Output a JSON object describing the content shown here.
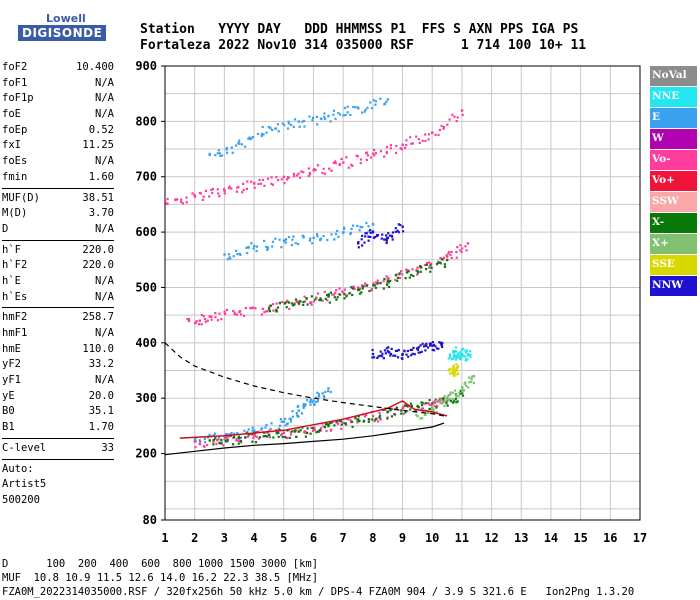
{
  "logo": {
    "line1": "Lowell",
    "line2": "DIGISONDE"
  },
  "header": {
    "row1": "Station   YYYY DAY   DDD HHMMSS P1  FFS S AXN PPS IGA PS",
    "row2": "Fortaleza 2022 Nov10 314 035000 RSF      1 714 100 10+ 11"
  },
  "params_groups": [
    [
      {
        "k": "foF2",
        "v": "10.400"
      },
      {
        "k": "foF1",
        "v": "N/A"
      },
      {
        "k": "foF1p",
        "v": "N/A"
      },
      {
        "k": "foE",
        "v": "N/A"
      },
      {
        "k": "foEp",
        "v": "0.52"
      },
      {
        "k": "fxI",
        "v": "11.25"
      },
      {
        "k": "foEs",
        "v": "N/A"
      },
      {
        "k": "fmin",
        "v": "1.60"
      }
    ],
    [
      {
        "k": "MUF(D)",
        "v": "38.51"
      },
      {
        "k": "M(D)",
        "v": "3.70"
      },
      {
        "k": "D",
        "v": "N/A"
      }
    ],
    [
      {
        "k": "h`F",
        "v": "220.0"
      },
      {
        "k": "h`F2",
        "v": "220.0"
      },
      {
        "k": "h`E",
        "v": "N/A"
      },
      {
        "k": "h`Es",
        "v": "N/A"
      }
    ],
    [
      {
        "k": "hmF2",
        "v": "258.7"
      },
      {
        "k": "hmF1",
        "v": "N/A"
      },
      {
        "k": "hmE",
        "v": "110.0"
      },
      {
        "k": "yF2",
        "v": "33.2"
      },
      {
        "k": "yF1",
        "v": "N/A"
      },
      {
        "k": "yE",
        "v": "20.0"
      },
      {
        "k": "B0",
        "v": "35.1"
      },
      {
        "k": "B1",
        "v": "1.70"
      }
    ],
    [
      {
        "k": "C-level",
        "v": "33"
      }
    ]
  ],
  "auto": {
    "line1": "Auto:",
    "line2": "Artist5",
    "line3": "500200"
  },
  "legend": [
    {
      "label": "NoVal",
      "color": "#8c8c8c"
    },
    {
      "label": "NNE",
      "color": "#22e6f0"
    },
    {
      "label": "E",
      "color": "#3aa0f0"
    },
    {
      "label": "W",
      "color": "#b000b0"
    },
    {
      "label": "Vo-",
      "color": "#ff3c9c"
    },
    {
      "label": "Vo+",
      "color": "#f01438"
    },
    {
      "label": "SSW",
      "color": "#f8a8a8"
    },
    {
      "label": "X-",
      "color": "#087808"
    },
    {
      "label": "X+",
      "color": "#80c070"
    },
    {
      "label": "SSE",
      "color": "#d8d800"
    },
    {
      "label": "NNW",
      "color": "#2010d0"
    }
  ],
  "footer": {
    "d_row": "D      100  200  400  600  800 1000 1500 3000 [km]",
    "muf_row": "MUF  10.8 10.9 11.5 12.6 14.0 16.2 22.3 38.5 [MHz]",
    "file_row": "FZA0M_2022314035000.RSF / 320fx256h 50 kHz 5.0 km / DPS-4 FZA0M 904 / 3.9 S 321.6 E   Ion2Png 1.3.20"
  },
  "chart_data": {
    "type": "scatter",
    "xlim": [
      1,
      17
    ],
    "ylim": [
      80,
      900
    ],
    "x_ticks": [
      "1",
      "2",
      "3",
      "4",
      "5",
      "6",
      "7",
      "8",
      "9",
      "10",
      "11",
      "12",
      "13",
      "14",
      "15",
      "16",
      "17"
    ],
    "y_ticks": [
      {
        "v": 80,
        "label": "80"
      },
      {
        "v": 200,
        "label": "200"
      },
      {
        "v": 300,
        "label": "300"
      },
      {
        "v": 400,
        "label": "400"
      },
      {
        "v": 500,
        "label": "500"
      },
      {
        "v": 600,
        "label": "600"
      },
      {
        "v": 700,
        "label": "700"
      },
      {
        "v": 800,
        "label": "800"
      },
      {
        "v": 900,
        "label": "900"
      }
    ],
    "traces": [
      {
        "name": "E",
        "color": "#3aa0f0",
        "points": [
          [
            2.0,
            225
          ],
          [
            3.0,
            232
          ],
          [
            4.0,
            242
          ],
          [
            5.0,
            258
          ],
          [
            5.5,
            278
          ],
          [
            6.0,
            296
          ],
          [
            6.5,
            318
          ]
        ]
      },
      {
        "name": "Vo-",
        "color": "#ff3c9c",
        "points": [
          [
            2.0,
            222
          ],
          [
            3.0,
            226
          ],
          [
            4.0,
            232
          ],
          [
            5.0,
            238
          ],
          [
            6.0,
            246
          ],
          [
            7.0,
            256
          ],
          [
            8.0,
            268
          ],
          [
            9.0,
            282
          ],
          [
            10.0,
            290
          ],
          [
            10.5,
            300
          ]
        ]
      },
      {
        "name": "X-",
        "color": "#087808",
        "points": [
          [
            2.5,
            224
          ],
          [
            3.5,
            228
          ],
          [
            4.5,
            234
          ],
          [
            5.5,
            240
          ],
          [
            6.5,
            250
          ],
          [
            7.5,
            262
          ],
          [
            8.5,
            276
          ],
          [
            9.5,
            286
          ],
          [
            10.5,
            296
          ],
          [
            11.0,
            310
          ]
        ]
      },
      {
        "name": "X+",
        "color": "#80c070",
        "points": [
          [
            9.5,
            268
          ],
          [
            10.0,
            282
          ],
          [
            10.5,
            300
          ],
          [
            11.0,
            320
          ],
          [
            11.4,
            340
          ]
        ]
      },
      {
        "name": "NNE",
        "color": "#22e6f0",
        "points": [
          [
            10.6,
            375
          ],
          [
            10.8,
            385
          ],
          [
            11.0,
            380
          ],
          [
            11.2,
            378
          ]
        ]
      },
      {
        "name": "NNW",
        "color": "#2010d0",
        "points": [
          [
            8.0,
            380
          ],
          [
            8.5,
            385
          ],
          [
            9.0,
            380
          ],
          [
            9.5,
            390
          ],
          [
            10.0,
            395
          ],
          [
            10.3,
            400
          ]
        ]
      },
      {
        "name": "SSE",
        "color": "#d8d800",
        "points": [
          [
            10.6,
            345
          ],
          [
            10.7,
            355
          ],
          [
            10.8,
            350
          ]
        ]
      },
      {
        "name": "Vo-",
        "color": "#ff3c9c",
        "points": [
          [
            1.8,
            440
          ],
          [
            2.5,
            448
          ],
          [
            3.5,
            456
          ],
          [
            4.5,
            464
          ],
          [
            5.5,
            474
          ],
          [
            6.5,
            486
          ],
          [
            7.5,
            500
          ],
          [
            8.5,
            516
          ],
          [
            9.5,
            536
          ],
          [
            10.5,
            556
          ],
          [
            11.2,
            580
          ]
        ]
      },
      {
        "name": "X-",
        "color": "#087808",
        "points": [
          [
            4.5,
            462
          ],
          [
            5.5,
            472
          ],
          [
            6.5,
            484
          ],
          [
            7.5,
            496
          ],
          [
            8.5,
            512
          ],
          [
            9.5,
            530
          ],
          [
            10.5,
            550
          ]
        ]
      },
      {
        "name": "E",
        "color": "#3aa0f0",
        "points": [
          [
            3.0,
            560
          ],
          [
            4.0,
            575
          ],
          [
            5.0,
            585
          ],
          [
            6.0,
            590
          ],
          [
            7.0,
            600
          ],
          [
            8.0,
            615
          ]
        ]
      },
      {
        "name": "NNW",
        "color": "#2010d0",
        "points": [
          [
            7.5,
            580
          ],
          [
            8.0,
            600
          ],
          [
            8.5,
            590
          ],
          [
            9.0,
            610
          ]
        ]
      },
      {
        "name": "Vo-",
        "color": "#ff3c9c",
        "points": [
          [
            1.0,
            655
          ],
          [
            2.0,
            665
          ],
          [
            3.0,
            675
          ],
          [
            4.0,
            688
          ],
          [
            5.0,
            700
          ],
          [
            6.0,
            712
          ],
          [
            7.0,
            726
          ],
          [
            8.0,
            742
          ],
          [
            9.0,
            758
          ],
          [
            10.0,
            780
          ],
          [
            11.0,
            820
          ]
        ]
      },
      {
        "name": "E",
        "color": "#3aa0f0",
        "points": [
          [
            2.5,
            740
          ],
          [
            3.5,
            760
          ],
          [
            4.5,
            790
          ],
          [
            5.5,
            800
          ],
          [
            6.5,
            810
          ],
          [
            7.5,
            825
          ],
          [
            8.5,
            840
          ]
        ]
      }
    ],
    "virtual_height_trace": [
      [
        1.0,
        198
      ],
      [
        2.0,
        204
      ],
      [
        3.0,
        210
      ],
      [
        4.0,
        215
      ],
      [
        5.0,
        218
      ],
      [
        6.0,
        222
      ],
      [
        7.0,
        226
      ],
      [
        8.0,
        232
      ],
      [
        9.0,
        240
      ],
      [
        10.0,
        248
      ],
      [
        10.4,
        255
      ]
    ],
    "red_trace": [
      [
        1.5,
        228
      ],
      [
        3.0,
        232
      ],
      [
        5.0,
        242
      ],
      [
        7.0,
        262
      ],
      [
        8.5,
        282
      ],
      [
        9.0,
        295
      ],
      [
        9.4,
        280
      ],
      [
        10.0,
        275
      ],
      [
        10.5,
        268
      ]
    ],
    "profile_dashed": [
      [
        1.0,
        400
      ],
      [
        1.5,
        375
      ],
      [
        2.0,
        358
      ],
      [
        3.0,
        338
      ],
      [
        4.0,
        322
      ],
      [
        5.0,
        310
      ],
      [
        6.0,
        300
      ],
      [
        7.0,
        292
      ],
      [
        8.0,
        285
      ],
      [
        9.0,
        278
      ],
      [
        10.0,
        272
      ],
      [
        10.4,
        268
      ]
    ]
  }
}
